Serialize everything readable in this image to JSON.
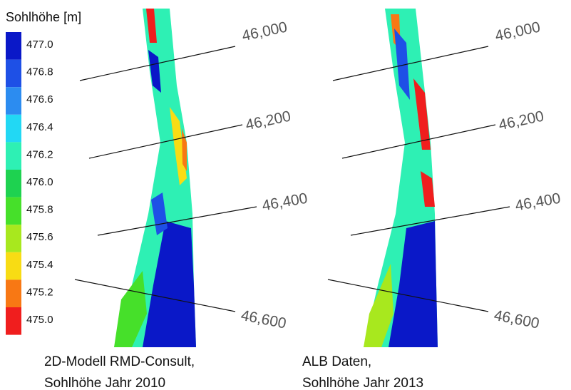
{
  "legend": {
    "title": "Sohlhöhe [m]",
    "labels": [
      "477.0",
      "476.8",
      "476.6",
      "476.4",
      "476.2",
      "476.0",
      "475.8",
      "475.6",
      "475.4",
      "475.2",
      "475.0"
    ],
    "colors": [
      "#0a18c8",
      "#1e50e6",
      "#2c8cf0",
      "#22d8f4",
      "#2ef0b4",
      "#1ed250",
      "#46e02a",
      "#a8e81e",
      "#f8dc14",
      "#f87814",
      "#f01e1e"
    ]
  },
  "panels": [
    {
      "stations": [
        "46,000",
        "46,200",
        "46,400",
        "46,600"
      ],
      "caption": [
        "2D-Modell RMD-Consult,",
        "Sohlhöhe  Jahr 2010"
      ]
    },
    {
      "stations": [
        "46,000",
        "46,200",
        "46,400",
        "46,600"
      ],
      "caption": [
        "ALB Daten,",
        "Sohlhöhe Jahr 2013"
      ]
    }
  ]
}
